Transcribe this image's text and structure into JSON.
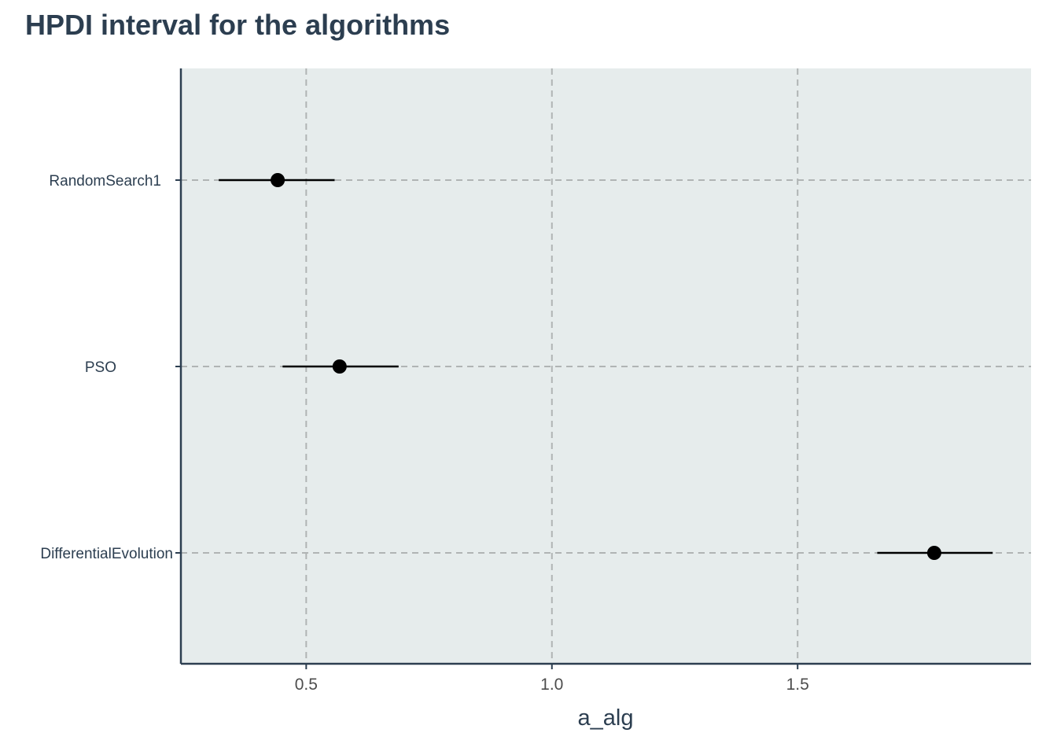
{
  "chart_data": {
    "type": "scatter",
    "title": "HPDI interval for the algorithms",
    "xlabel": "a_alg",
    "ylabel": "",
    "xlim": [
      0.245,
      1.975
    ],
    "x_ticks": [
      0.5,
      1.0,
      1.5
    ],
    "x_tick_labels": [
      "0.5",
      "1.0",
      "1.5"
    ],
    "categories": [
      "RandomSearch1",
      "PSO",
      "DifferentialEvolution"
    ],
    "points": [
      {
        "category": "RandomSearch1",
        "estimate": 0.442,
        "lower": 0.322,
        "upper": 0.558
      },
      {
        "category": "PSO",
        "estimate": 0.568,
        "lower": 0.452,
        "upper": 0.688
      },
      {
        "category": "DifferentialEvolution",
        "estimate": 1.778,
        "lower": 1.662,
        "upper": 1.897
      }
    ],
    "grid": true,
    "grid_style": "dashed",
    "colors": {
      "panel_background": "#e6ecec",
      "grid": "#b0b4b4",
      "axis": "#2c3e50",
      "point": "#000000",
      "text": "#2c3e50"
    }
  }
}
